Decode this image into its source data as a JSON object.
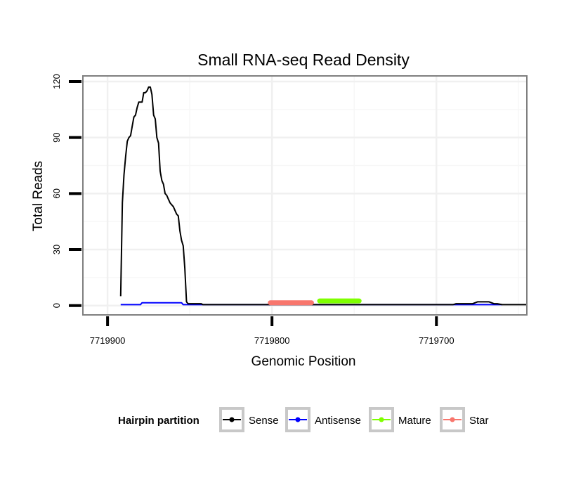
{
  "chart_data": {
    "type": "line",
    "title": "Small RNA-seq Read Density",
    "xlabel": "Genomic Position",
    "ylabel": "Total Reads",
    "xlim": [
      7719915,
      7719645
    ],
    "ylim": [
      -5,
      123
    ],
    "x_reversed": true,
    "x_ticks": [
      7719900,
      7719800,
      7719700
    ],
    "x_tick_labels": [
      "7719900",
      "7719800",
      "7719700"
    ],
    "y_ticks": [
      0,
      30,
      60,
      90,
      120
    ],
    "y_tick_labels": [
      "0",
      "30",
      "60",
      "90",
      "120"
    ],
    "grid": true,
    "legend": {
      "title": "Hairpin partition",
      "position": "bottom",
      "entries": [
        "Sense",
        "Antisense",
        "Mature",
        "Star"
      ]
    },
    "series": [
      {
        "name": "Sense",
        "color": "#000000",
        "x": [
          7719892,
          7719891,
          7719890,
          7719889,
          7719888,
          7719887,
          7719886,
          7719885,
          7719884,
          7719883,
          7719882,
          7719881,
          7719880,
          7719879,
          7719878,
          7719877,
          7719876,
          7719875,
          7719874,
          7719873,
          7719872,
          7719871,
          7719870,
          7719869,
          7719868,
          7719867,
          7719866,
          7719865,
          7719864,
          7719863,
          7719862,
          7719861,
          7719860,
          7719859,
          7719858,
          7719857,
          7719856,
          7719855,
          7719854,
          7719853,
          7719852,
          7719851,
          7719850,
          7719849,
          7719848,
          7719847,
          7719846,
          7719845,
          7719844,
          7719843,
          7719842,
          7719840,
          7719839,
          7719838,
          7719837,
          7719836,
          7719835,
          7719834,
          7719832,
          7719830,
          7719825,
          7719820,
          7719800,
          7719790,
          7719780,
          7719770,
          7719750,
          7719740,
          7719730,
          7719720,
          7719710,
          7719700,
          7719690,
          7719688,
          7719685,
          7719683,
          7719680,
          7719678,
          7719675,
          7719673,
          7719670,
          7719668,
          7719665,
          7719663,
          7719660,
          7719645
        ],
        "values": [
          5,
          55,
          70,
          80,
          88,
          90,
          91,
          96,
          101,
          102,
          106,
          109,
          109,
          109,
          114,
          114,
          115,
          117,
          117,
          113,
          102,
          100,
          90,
          87,
          72,
          67,
          65,
          60,
          59,
          57,
          55,
          54,
          53,
          51,
          49,
          48,
          40,
          35,
          32,
          20,
          2,
          1,
          1,
          1,
          1,
          1,
          1,
          1,
          1,
          1,
          0.5,
          0.5,
          0.5,
          0.5,
          0.5,
          0.5,
          0.5,
          0.5,
          0.5,
          0.5,
          0.5,
          0.5,
          0.5,
          0.5,
          0.5,
          0.5,
          0.5,
          0.5,
          0.5,
          0.5,
          0.5,
          0.5,
          0.5,
          1,
          1,
          1,
          1,
          1,
          2,
          2,
          2,
          2,
          1,
          1,
          0.5,
          0.5
        ]
      },
      {
        "name": "Antisense",
        "color": "#0000ff",
        "x": [
          7719892,
          7719880,
          7719879,
          7719870,
          7719855,
          7719854,
          7719840,
          7719830,
          7719700,
          7719690,
          7719686,
          7719675,
          7719674,
          7719660
        ],
        "values": [
          0.5,
          0.5,
          1.5,
          1.5,
          1.5,
          0.5,
          0.5,
          0.5,
          0.5,
          0.5,
          0.5,
          0.5,
          0.5,
          0.5
        ]
      },
      {
        "name": "Mature",
        "color": "#7fff00",
        "x": [
          7719771,
          7719747
        ],
        "values": [
          2.5,
          2.5
        ]
      },
      {
        "name": "Star",
        "color": "#f8766d",
        "x": [
          7719801,
          7719776
        ],
        "values": [
          1.5,
          1.5
        ]
      }
    ]
  }
}
